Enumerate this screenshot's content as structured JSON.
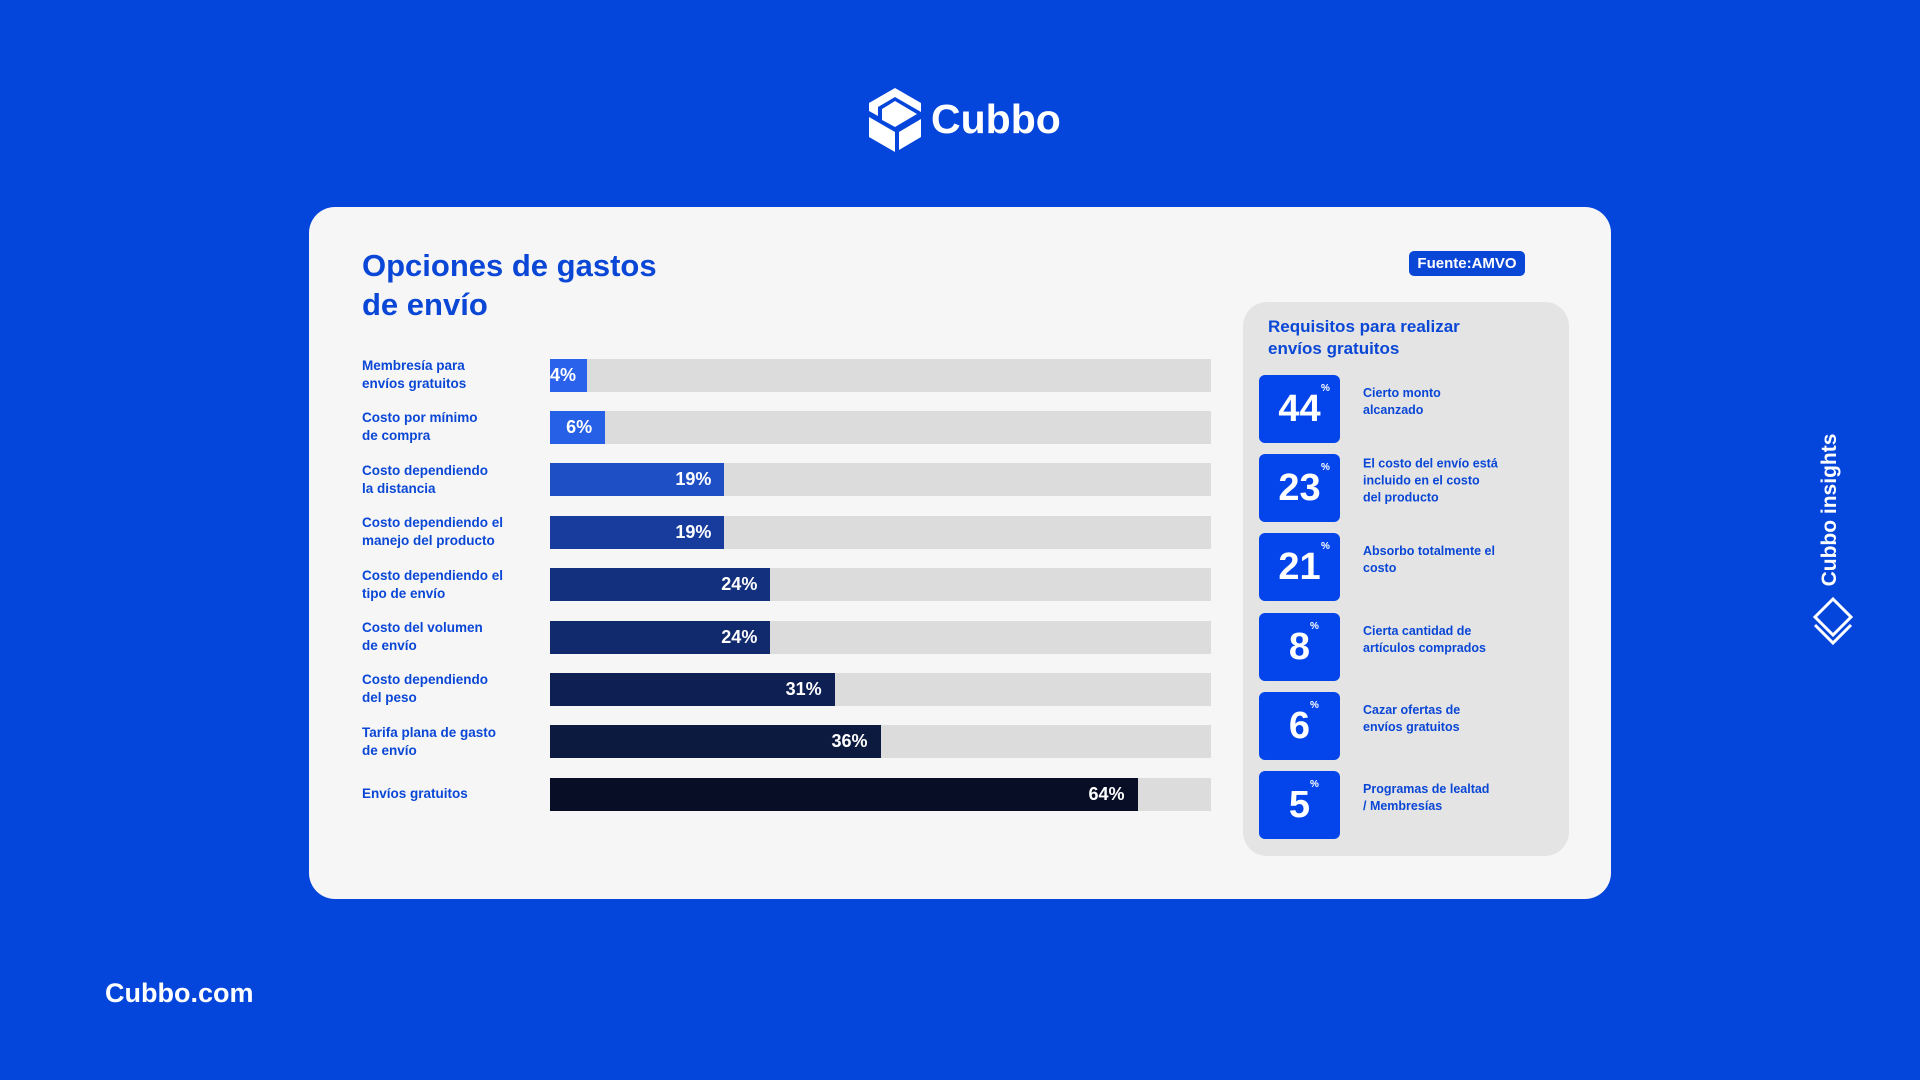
{
  "brand": "Cubbo",
  "footer": "Cubbo.com",
  "side_label": "Cubbo insights",
  "source": "Fuente:AMVO",
  "chart_data": {
    "type": "bar",
    "orientation": "horizontal",
    "title": "Opciones de gastos\nde envío",
    "categories": [
      "Membresía para\nenvíos gratuitos",
      "Costo por mínimo\nde compra",
      "Costo dependiendo\nla distancia",
      "Costo dependiendo el\nmanejo del producto",
      "Costo dependiendo el\ntipo de envío",
      "Costo del volumen\nde envío",
      "Costo dependiendo\ndel peso",
      "Tarifa plana de gasto\nde envío",
      "Envíos gratuitos"
    ],
    "values": [
      4,
      6,
      19,
      19,
      24,
      24,
      31,
      36,
      64
    ],
    "value_labels": [
      "4%",
      "6%",
      "19%",
      "19%",
      "24%",
      "24%",
      "31%",
      "36%",
      "64%"
    ],
    "colors": [
      "#2a62ec",
      "#2560e6",
      "#1f4fc4",
      "#173c9e",
      "#13307e",
      "#112a6e",
      "#0d1f53",
      "#0c1a40",
      "#070e26"
    ],
    "xlim": [
      0,
      72
    ]
  },
  "requirements": {
    "title": "Requisitos para realizar\nenvíos gratuitos",
    "items": [
      {
        "value": "44",
        "unit": "%",
        "label": "Cierto monto\nalcanzado"
      },
      {
        "value": "23",
        "unit": "%",
        "label": "El costo del envío está\nincluido en el costo\ndel producto"
      },
      {
        "value": "21",
        "unit": "%",
        "label": "Absorbo totalmente el\ncosto"
      },
      {
        "value": "8",
        "unit": "%",
        "label": "Cierta cantidad de\nartículos comprados"
      },
      {
        "value": "6",
        "unit": "%",
        "label": "Cazar ofertas de\nenvíos gratuitos"
      },
      {
        "value": "5",
        "unit": "%",
        "label": "Programas de lealtad\n/ Membresías"
      }
    ]
  }
}
